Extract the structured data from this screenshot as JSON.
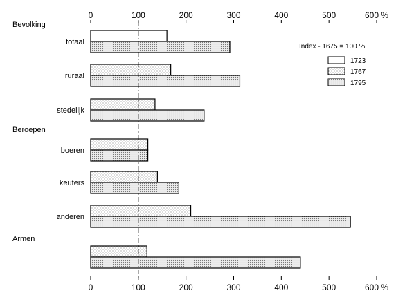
{
  "chart_data": {
    "type": "bar",
    "orientation": "horizontal",
    "legend_title": "Index - 1675 = 100 %",
    "legend_placement": "top-right",
    "xlim": [
      0,
      600
    ],
    "x_ticks": [
      "0",
      "100",
      "200",
      "300",
      "400",
      "500",
      "600 %"
    ],
    "reference_line": 100,
    "grid": false,
    "sections": [
      {
        "label": "Bevolking"
      },
      {
        "label": "Beroepen"
      },
      {
        "label": "Armen"
      }
    ],
    "categories": [
      "totaal",
      "ruraal",
      "stedelijk",
      "boeren",
      "keuters",
      "anderen",
      ""
    ],
    "series": [
      {
        "name": "1723",
        "values": [
          160,
          null,
          null,
          null,
          null,
          null,
          null
        ]
      },
      {
        "name": "1767",
        "values": [
          null,
          168,
          135,
          120,
          140,
          210,
          118
        ]
      },
      {
        "name": "1795",
        "values": [
          292,
          313,
          238,
          120,
          185,
          545,
          440
        ]
      }
    ]
  }
}
